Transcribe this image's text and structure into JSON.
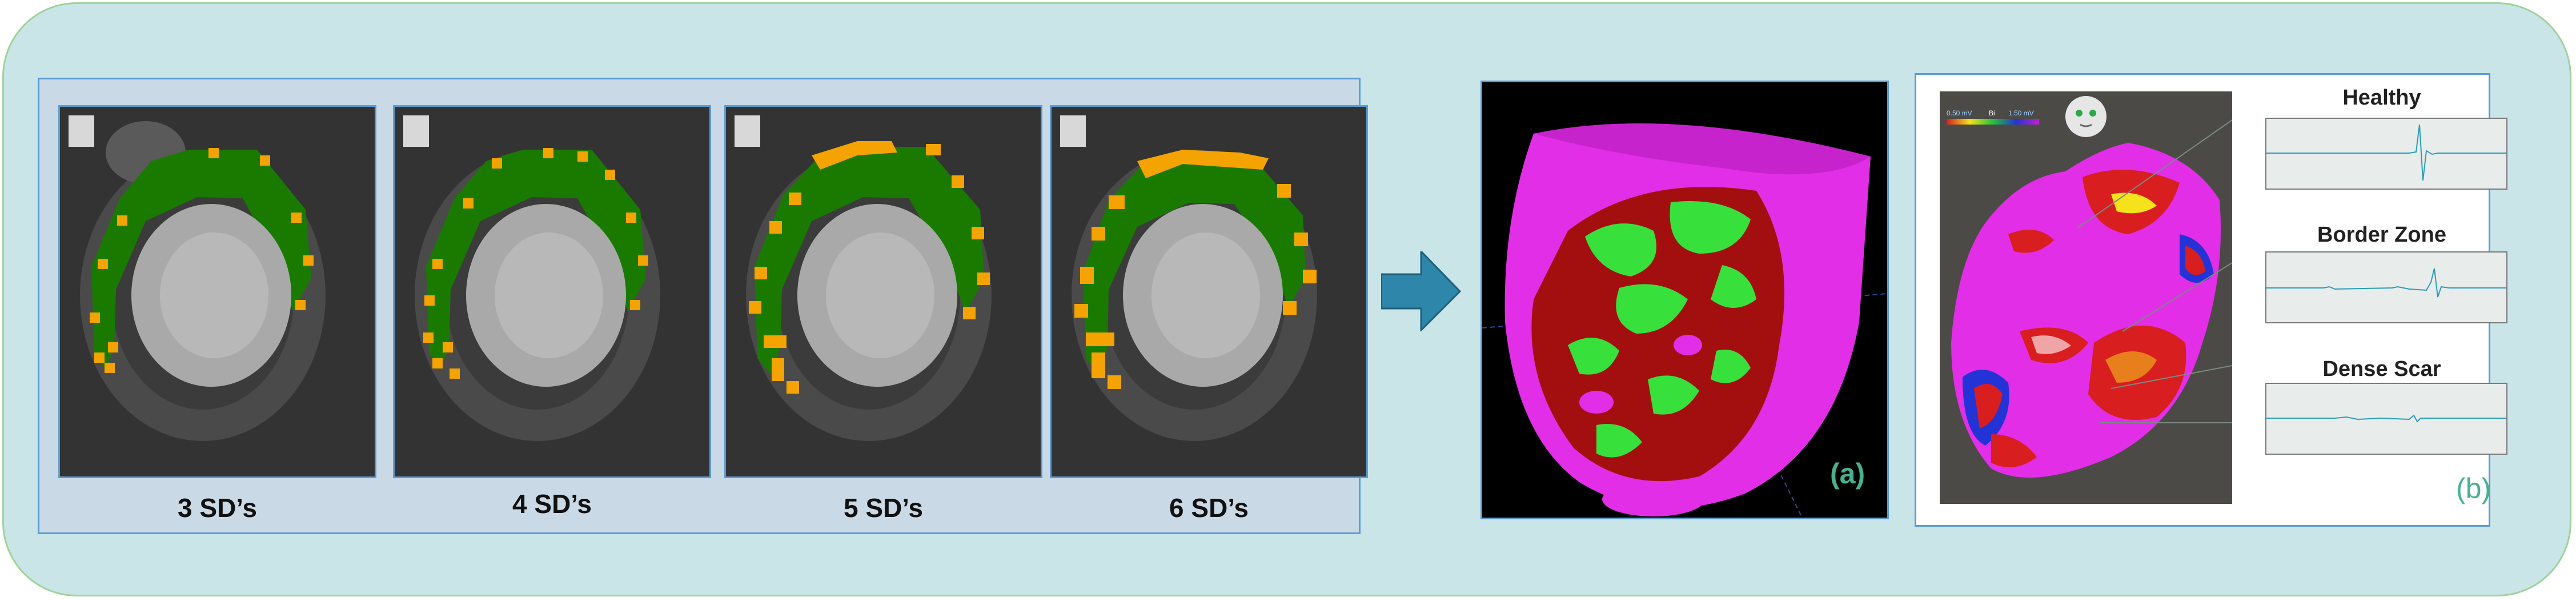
{
  "mri_panels": [
    {
      "label": "3 SD’s"
    },
    {
      "label": "4 SD’s"
    },
    {
      "label": "5 SD’s"
    },
    {
      "label": "6 SD’s"
    }
  ],
  "panel_a": {
    "label": "(a)"
  },
  "panel_b": {
    "label": "(b)",
    "colorbar_min": "0.50 mV",
    "colorbar_mid": "Bi",
    "colorbar_max": "1.50 mV"
  },
  "traces": [
    {
      "title": "Healthy"
    },
    {
      "title": "Border Zone"
    },
    {
      "title": "Dense Scar"
    }
  ],
  "colors": {
    "healthy_myocardium": "#1a7a00",
    "scar_border": "#f5a300",
    "outer_background": "#c9e5e8",
    "panel_background": "#c9d9e6",
    "panel_border": "#5b9bd5",
    "label_accent": "#49b08f",
    "scar_red": "#a30f0f",
    "scar_green": "#38e03c",
    "healthy_magenta": "#e22ee6",
    "arrow": "#2e86ab"
  }
}
